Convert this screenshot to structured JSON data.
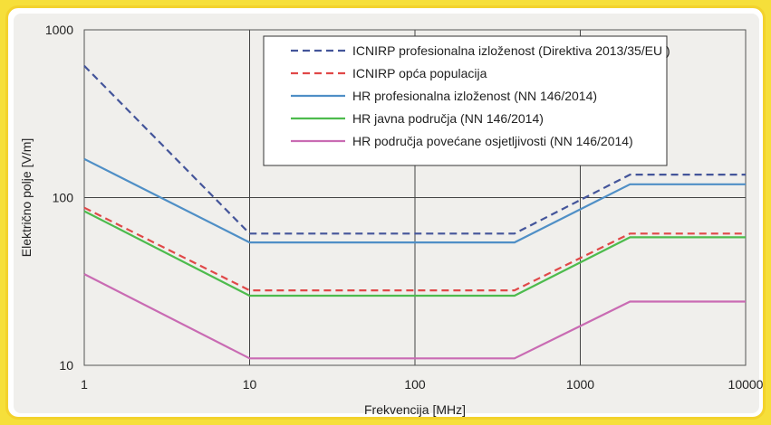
{
  "chart_data": {
    "type": "line",
    "xlabel": "Frekvencija [MHz]",
    "ylabel": "Električno polje [V/m]",
    "x_scale": "log",
    "y_scale": "log",
    "xlim": [
      1,
      10000
    ],
    "ylim": [
      10,
      1000
    ],
    "x_ticks": [
      "1",
      "10",
      "100",
      "1000",
      "10000"
    ],
    "y_ticks": [
      "10",
      "100",
      "1000"
    ],
    "grid": true,
    "legend_position": "top-right",
    "series": [
      {
        "name": "ICNIRP profesionalna izloženost (Direktiva 2013/35/EU )",
        "color": "#44559a",
        "dash": "dashed",
        "points": [
          [
            1,
            610
          ],
          [
            10,
            61
          ],
          [
            400,
            61
          ],
          [
            2000,
            137
          ],
          [
            10000,
            137
          ]
        ]
      },
      {
        "name": "ICNIRP opća populacija",
        "color": "#e04848",
        "dash": "dashed",
        "points": [
          [
            1,
            87
          ],
          [
            10,
            28
          ],
          [
            400,
            28
          ],
          [
            2000,
            61
          ],
          [
            10000,
            61
          ]
        ]
      },
      {
        "name": "HR profesionalna izloženost (NN 146/2014)",
        "color": "#4f8fc6",
        "dash": "solid",
        "points": [
          [
            1,
            170
          ],
          [
            10,
            54
          ],
          [
            400,
            54
          ],
          [
            2000,
            120
          ],
          [
            10000,
            120
          ]
        ]
      },
      {
        "name": "HR javna područja (NN 146/2014)",
        "color": "#4dbb4d",
        "dash": "solid",
        "points": [
          [
            1,
            83
          ],
          [
            10,
            26
          ],
          [
            400,
            26
          ],
          [
            2000,
            58
          ],
          [
            10000,
            58
          ]
        ]
      },
      {
        "name": "HR područja povećane osjetljivosti (NN 146/2014)",
        "color": "#c96bb3",
        "dash": "solid",
        "points": [
          [
            1,
            35
          ],
          [
            10,
            11
          ],
          [
            400,
            11
          ],
          [
            2000,
            24
          ],
          [
            10000,
            24
          ]
        ]
      }
    ]
  }
}
